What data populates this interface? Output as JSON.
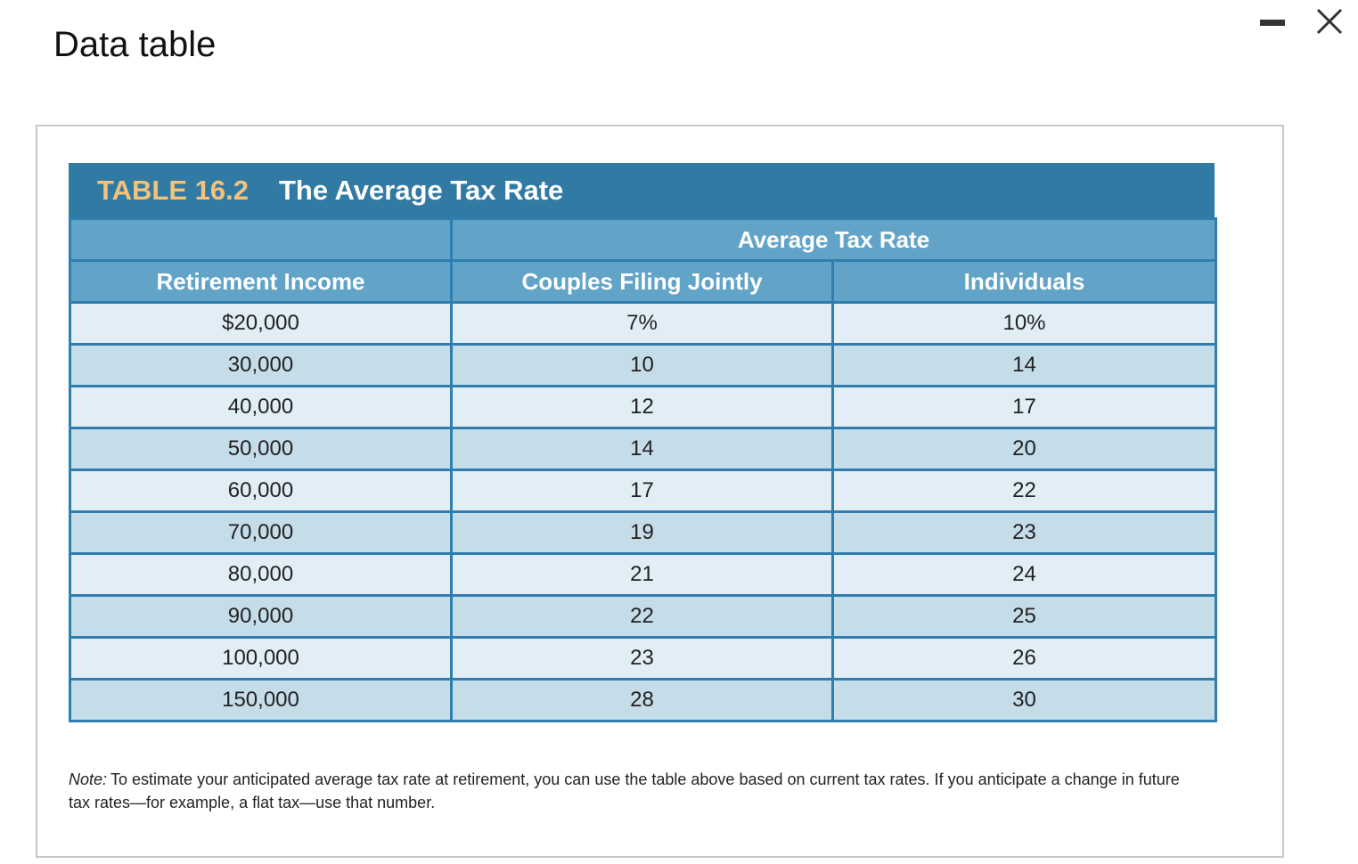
{
  "header": {
    "title": "Data table"
  },
  "table": {
    "label": "TABLE 16.2",
    "title": "The Average Tax Rate",
    "group_header": "Average Tax Rate",
    "columns": [
      "Retirement Income",
      "Couples Filing Jointly",
      "Individuals"
    ],
    "rows": [
      [
        "$20,000",
        "7%",
        "10%"
      ],
      [
        "30,000",
        "10",
        "14"
      ],
      [
        "40,000",
        "12",
        "17"
      ],
      [
        "50,000",
        "14",
        "20"
      ],
      [
        "60,000",
        "17",
        "22"
      ],
      [
        "70,000",
        "19",
        "23"
      ],
      [
        "80,000",
        "21",
        "24"
      ],
      [
        "90,000",
        "22",
        "25"
      ],
      [
        "100,000",
        "23",
        "26"
      ],
      [
        "150,000",
        "28",
        "30"
      ]
    ]
  },
  "note": {
    "label": "Note:",
    "text": "To estimate your anticipated average tax rate at retirement, you can use the table above based on current tax rates. If you anticipate a change in future tax rates—for example, a flat tax—use that number."
  }
}
